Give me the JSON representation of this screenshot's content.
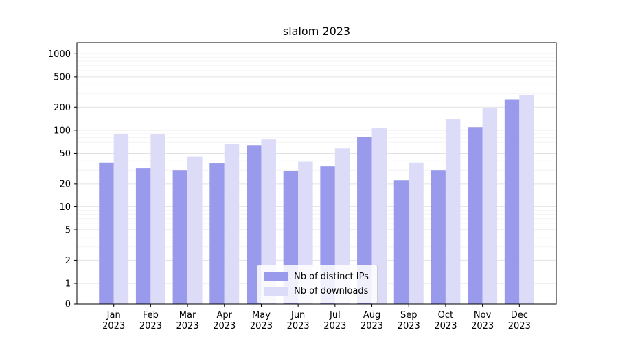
{
  "figure": {
    "background": "#ffffff"
  },
  "chart_data": {
    "type": "bar",
    "title": "slalom 2023",
    "yscale": "symlog",
    "grid": true,
    "legend_position": "lower center",
    "ylim": [
      0,
      1400
    ],
    "yticks": [
      0,
      1,
      2,
      5,
      10,
      20,
      50,
      100,
      200,
      500,
      1000
    ],
    "categories": [
      "Jan 2023",
      "Feb 2023",
      "Mar 2023",
      "Apr 2023",
      "May 2023",
      "Jun 2023",
      "Jul 2023",
      "Aug 2023",
      "Sep 2023",
      "Oct 2023",
      "Nov 2023",
      "Dec 2023"
    ],
    "series": [
      {
        "name": "Nb of distinct IPs",
        "color": "#9a9aec",
        "values": [
          38,
          32,
          30,
          37,
          63,
          29,
          34,
          82,
          22,
          30,
          110,
          250
        ]
      },
      {
        "name": "Nb of downloads",
        "color": "#dcdcf8",
        "values": [
          90,
          88,
          45,
          66,
          76,
          39,
          58,
          106,
          38,
          140,
          193,
          290
        ]
      }
    ]
  }
}
